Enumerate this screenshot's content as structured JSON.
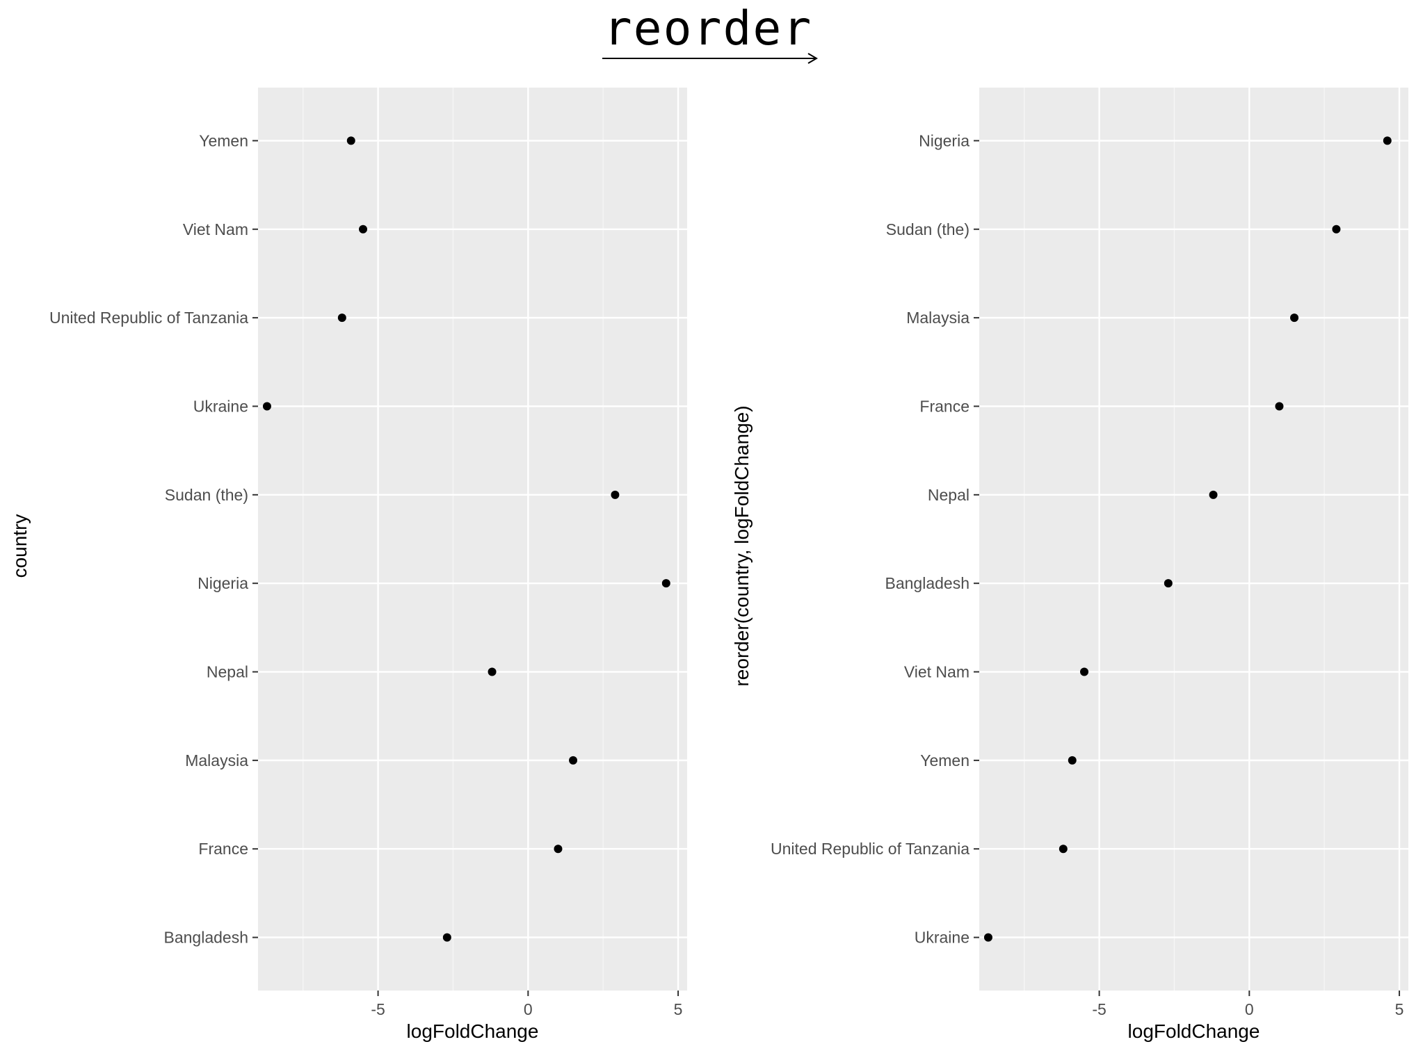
{
  "header": {
    "title": "reorder"
  },
  "chart_data": [
    {
      "type": "scatter",
      "xlabel": "logFoldChange",
      "ylabel": "country",
      "xlim": [
        -9,
        5.3
      ],
      "x_ticks": [
        -5,
        0,
        5
      ],
      "x_tick_labels": [
        "-5",
        "0",
        "5"
      ],
      "grid": true,
      "categories_bottom_to_top": [
        "Bangladesh",
        "France",
        "Malaysia",
        "Nepal",
        "Nigeria",
        "Sudan (the)",
        "Ukraine",
        "United Republic of Tanzania",
        "Viet Nam",
        "Yemen"
      ],
      "points": [
        {
          "country": "Yemen",
          "x": -5.9
        },
        {
          "country": "Viet Nam",
          "x": -5.5
        },
        {
          "country": "United Republic of Tanzania",
          "x": -6.2
        },
        {
          "country": "Ukraine",
          "x": -8.7
        },
        {
          "country": "Sudan (the)",
          "x": 2.9
        },
        {
          "country": "Nigeria",
          "x": 4.6
        },
        {
          "country": "Nepal",
          "x": -1.2
        },
        {
          "country": "Malaysia",
          "x": 1.5
        },
        {
          "country": "France",
          "x": 1.0
        },
        {
          "country": "Bangladesh",
          "x": -2.7
        }
      ]
    },
    {
      "type": "scatter",
      "xlabel": "logFoldChange",
      "ylabel": "reorder(country, logFoldChange)",
      "xlim": [
        -9,
        5.3
      ],
      "x_ticks": [
        -5,
        0,
        5
      ],
      "x_tick_labels": [
        "-5",
        "0",
        "5"
      ],
      "grid": true,
      "categories_bottom_to_top": [
        "Ukraine",
        "United Republic of Tanzania",
        "Yemen",
        "Viet Nam",
        "Bangladesh",
        "Nepal",
        "France",
        "Malaysia",
        "Sudan (the)",
        "Nigeria"
      ],
      "points": [
        {
          "country": "Nigeria",
          "x": 4.6
        },
        {
          "country": "Sudan (the)",
          "x": 2.9
        },
        {
          "country": "Malaysia",
          "x": 1.5
        },
        {
          "country": "France",
          "x": 1.0
        },
        {
          "country": "Nepal",
          "x": -1.2
        },
        {
          "country": "Bangladesh",
          "x": -2.7
        },
        {
          "country": "Viet Nam",
          "x": -5.5
        },
        {
          "country": "Yemen",
          "x": -5.9
        },
        {
          "country": "United Republic of Tanzania",
          "x": -6.2
        },
        {
          "country": "Ukraine",
          "x": -8.7
        }
      ]
    }
  ]
}
